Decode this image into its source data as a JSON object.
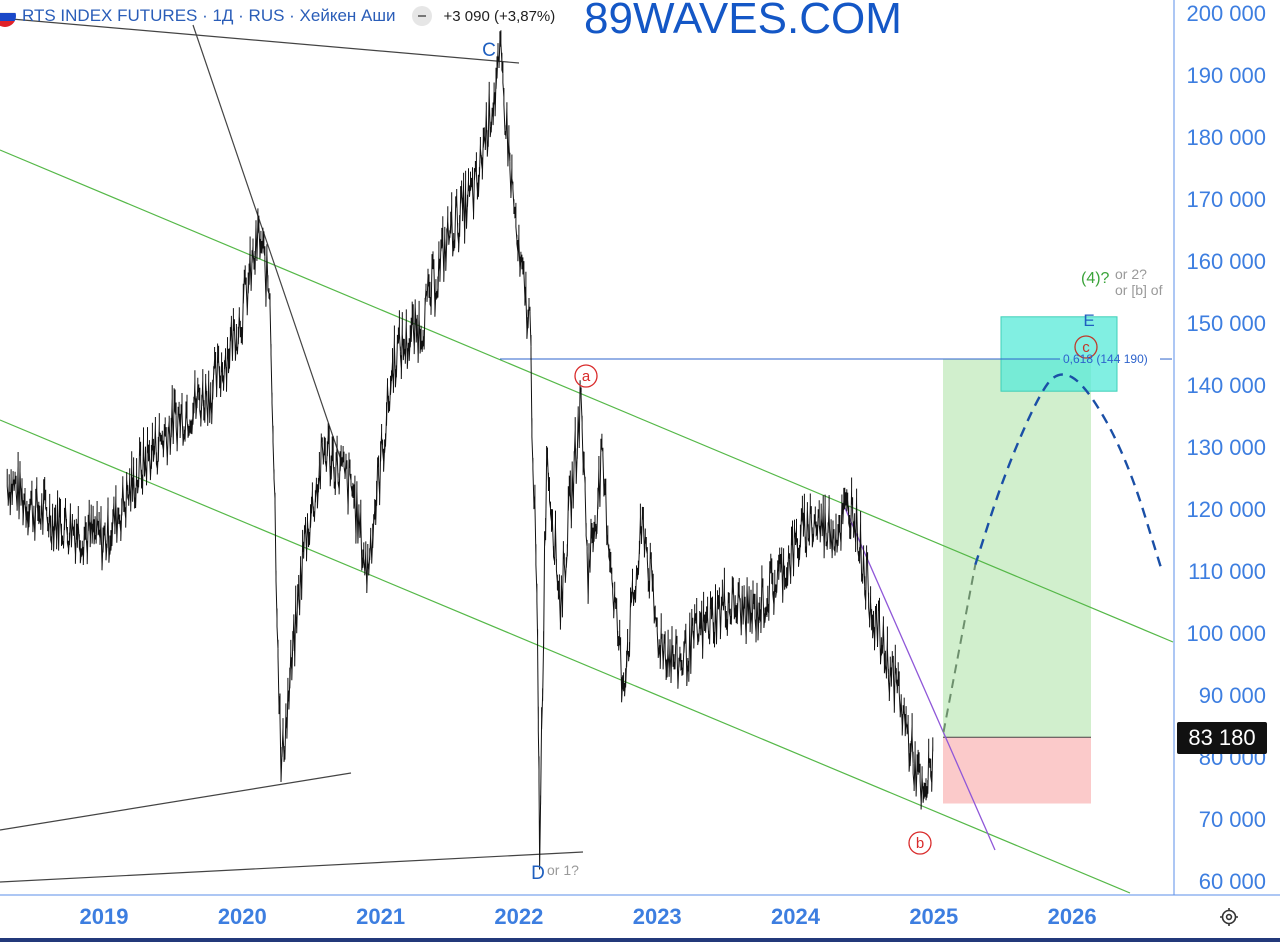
{
  "header": {
    "symbol_title": "RTS INDEX FUTURES · 1Д · RUS · Хейкен Аши",
    "change_text": "+3 090 (+3,87%)",
    "flag_icon": "russia-flag-icon",
    "toggle_icon": "minus-pill-icon"
  },
  "watermark": "89WAVES.COM",
  "current_price": "83 180",
  "fib_label": "0,618 (144 190)",
  "settings_icon": "gear-icon",
  "colors": {
    "axis_text": "#3d7ee0",
    "grid_border": "#5b8fe8",
    "channel_green": "#55b848",
    "wave_blue": "#1f5fbf",
    "wave_red": "#d92b2b",
    "target_box": "#57ead8",
    "profit_zone": "#c9ecc4",
    "stop_zone": "#fbc4c4",
    "projection_dash": "#1a4fa6"
  },
  "annotations": {
    "wave_c_top": "C",
    "wave_d": "D",
    "wave_d_alt": "or 1?",
    "wave_a": "a",
    "wave_b": "b",
    "wave_e": "E",
    "wave_c_small": "c",
    "wave_4": "(4)?",
    "wave_4_alt1": "or 2?",
    "wave_4_alt2": "or [b] of"
  },
  "chart_data": {
    "type": "line",
    "title": "RTS INDEX FUTURES · 1Д · RUS · Хейкен Аши",
    "y_ticks": [
      "200 000",
      "190 000",
      "180 000",
      "170 000",
      "160 000",
      "150 000",
      "140 000",
      "130 000",
      "120 000",
      "110 000",
      "100 000",
      "90 000",
      "80 000",
      "70 000",
      "60 000"
    ],
    "x_ticks": [
      "2019",
      "2020",
      "2021",
      "2022",
      "2023",
      "2024",
      "2025",
      "2026"
    ],
    "ylim": [
      58000,
      202000
    ],
    "series": [
      {
        "x": [
          2018.3,
          2018.5,
          2018.8,
          2019.0,
          2019.3,
          2019.5,
          2019.8,
          2020.0,
          2020.12,
          2020.2,
          2020.28,
          2020.45,
          2020.6,
          2020.8,
          2020.9,
          2021.1,
          2021.3,
          2021.5,
          2021.7,
          2021.75,
          2021.87,
          2022.0,
          2022.08,
          2022.13,
          2022.15,
          2022.2,
          2022.3,
          2022.45,
          2022.5,
          2022.6,
          2022.75,
          2022.9,
          2023.0,
          2023.15,
          2023.3,
          2023.5,
          2023.7,
          2023.9,
          2024.1,
          2024.3,
          2024.42,
          2024.5,
          2024.6,
          2024.75,
          2024.85,
          2024.93,
          2024.97,
          2025.0
        ],
        "y": [
          125000,
          120000,
          117000,
          115000,
          128000,
          134000,
          140000,
          152000,
          164000,
          155000,
          78000,
          115000,
          130000,
          123000,
          110000,
          145000,
          150000,
          165000,
          172000,
          180000,
          192000,
          160000,
          150000,
          105000,
          66000,
          130000,
          105000,
          138000,
          110000,
          127000,
          92000,
          118000,
          100000,
          95000,
          100000,
          105000,
          103000,
          110000,
          118000,
          117000,
          121000,
          110000,
          100000,
          90000,
          80000,
          72000,
          78000,
          81000
        ]
      }
    ],
    "key_levels": {
      "fib_0618": 144190,
      "current": 83180,
      "target_zone": [
        139000,
        151000
      ],
      "long_entry": 83180,
      "stop": 72500,
      "take_profit": 144190
    },
    "projection": {
      "x": [
        2025.07,
        2025.3,
        2025.5,
        2025.75,
        2025.9,
        2026.1,
        2026.4,
        2026.65
      ],
      "y": [
        84000,
        111000,
        125000,
        138000,
        142500,
        140000,
        128000,
        110000
      ]
    },
    "grid": false,
    "legend": "none"
  }
}
